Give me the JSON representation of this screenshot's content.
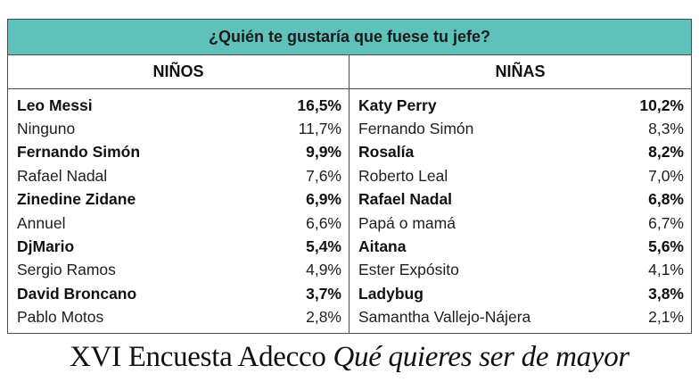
{
  "table": {
    "title": "¿Quién te gustaría que fuese tu jefe?",
    "header_color": "#5fc1bb",
    "columns": [
      {
        "label": "NIÑOS",
        "rows": [
          {
            "name": "Leo Messi",
            "value": "16,5%",
            "bold": true
          },
          {
            "name": "Ninguno",
            "value": "11,7%",
            "bold": false
          },
          {
            "name": "Fernando Simón",
            "value": "9,9%",
            "bold": true
          },
          {
            "name": "Rafael Nadal",
            "value": "7,6%",
            "bold": false
          },
          {
            "name": "Zinedine Zidane",
            "value": "6,9%",
            "bold": true
          },
          {
            "name": "Annuel",
            "value": "6,6%",
            "bold": false
          },
          {
            "name": "DjMario",
            "value": "5,4%",
            "bold": true
          },
          {
            "name": "Sergio Ramos",
            "value": "4,9%",
            "bold": false
          },
          {
            "name": "David Broncano",
            "value": "3,7%",
            "bold": true
          },
          {
            "name": "Pablo Motos",
            "value": "2,8%",
            "bold": false
          }
        ]
      },
      {
        "label": "NIÑAS",
        "rows": [
          {
            "name": "Katy Perry",
            "value": "10,2%",
            "bold": true
          },
          {
            "name": "Fernando Simón",
            "value": "8,3%",
            "bold": false
          },
          {
            "name": "Rosalía",
            "value": "8,2%",
            "bold": true
          },
          {
            "name": "Roberto Leal",
            "value": "7,0%",
            "bold": false
          },
          {
            "name": "Rafael Nadal",
            "value": "6,8%",
            "bold": true
          },
          {
            "name": "Papá o mamá",
            "value": "6,7%",
            "bold": false
          },
          {
            "name": "Aitana",
            "value": "5,6%",
            "bold": true
          },
          {
            "name": "Ester Expósito",
            "value": "4,1%",
            "bold": false
          },
          {
            "name": "Ladybug",
            "value": "3,8%",
            "bold": true
          },
          {
            "name": "Samantha Vallejo-Nájera",
            "value": "2,1%",
            "bold": false
          }
        ]
      }
    ]
  },
  "caption": {
    "regular": "XVI Encuesta Adecco ",
    "italic": "Qué quieres ser de mayor"
  }
}
